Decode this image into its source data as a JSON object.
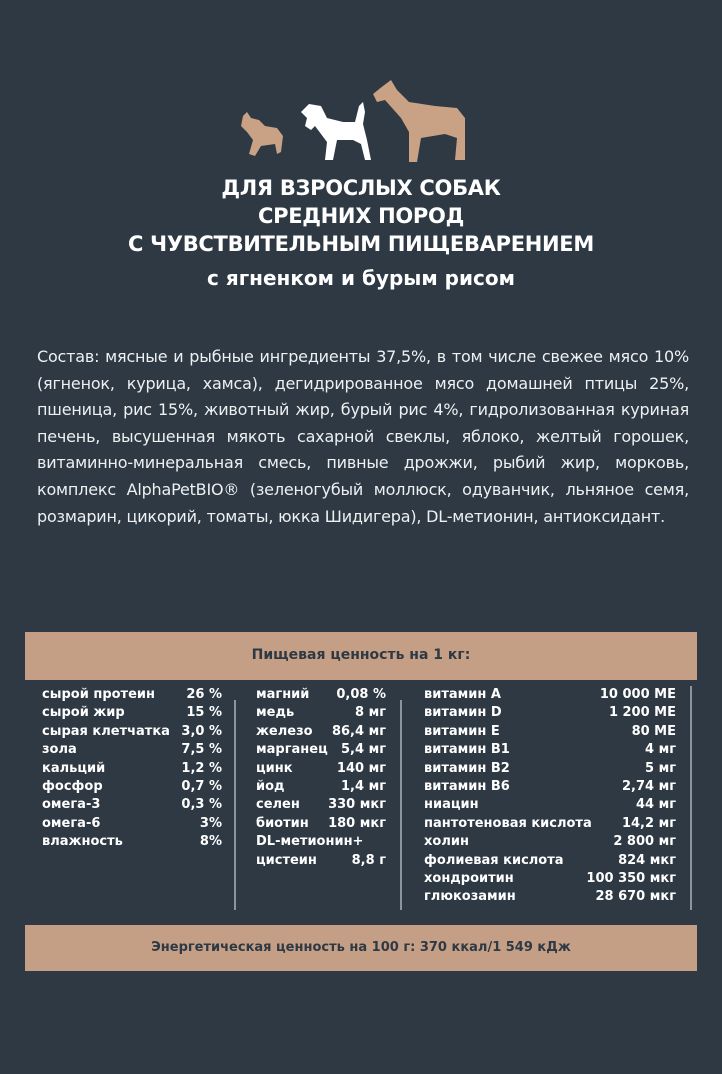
{
  "colors": {
    "background": "#2e3944",
    "accent": "#c49f86",
    "text": "#ffffff"
  },
  "icons": [
    "small-dog-icon",
    "medium-dog-icon",
    "large-dog-icon"
  ],
  "title": {
    "lines": [
      "ДЛЯ ВЗРОСЛЫХ СОБАК",
      "СРЕДНИХ ПОРОД",
      "С ЧУВСТВИТЕЛЬНЫМ ПИЩЕВАРЕНИЕМ"
    ],
    "subtitle": "с ягненком и бурым рисом"
  },
  "composition": "Состав: мясные и рыбные ингредиенты 37,5%, в том числе свежее мясо 10% (ягненок, курица, хамса), дегидрированное мясо домашней птицы 25%, пшеница, рис 15%, животный жир, бурый рис 4%, гидролизованная куриная печень, высушенная мякоть сахарной свеклы, яблоко, желтый горошек, витаминно-минеральная смесь, пивные дрожжи, рыбий жир, морковь, комплекс AlphaPetBIO® (зеленогубый моллюск, одуванчик, льняное семя, розмарин, цикорий, томаты, юкка Шидигера), DL-метионин, антиоксидант.",
  "nutrition": {
    "header": "Пищевая ценность на 1 кг:",
    "col1": [
      [
        "сырой протеин",
        "26 %"
      ],
      [
        "сырой жир",
        "15 %"
      ],
      [
        "сырая клетчатка",
        "3,0 %"
      ],
      [
        "зола",
        "7,5 %"
      ],
      [
        "кальций",
        "1,2 %"
      ],
      [
        "фосфор",
        "0,7 %"
      ],
      [
        "омега-3",
        "0,3 %"
      ],
      [
        "омега-6",
        "3%"
      ],
      [
        "влажность",
        "8%"
      ]
    ],
    "col2": [
      [
        "магний",
        "0,08 %"
      ],
      [
        "медь",
        "8 мг"
      ],
      [
        "железо",
        "86,4 мг"
      ],
      [
        "марганец",
        "5,4 мг"
      ],
      [
        "цинк",
        "140 мг"
      ],
      [
        "йод",
        "1,4 мг"
      ],
      [
        "селен",
        "330 мкг"
      ],
      [
        "биотин",
        "180 мкг"
      ],
      [
        "DL-метионин+",
        ""
      ],
      [
        "цистеин",
        "8,8 г"
      ]
    ],
    "col3": [
      [
        "витамин А",
        "10 000 МЕ"
      ],
      [
        "витамин D",
        "1 200 МЕ"
      ],
      [
        "витамин Е",
        "80 МЕ"
      ],
      [
        "витамин В1",
        "4 мг"
      ],
      [
        "витамин В2",
        "5 мг"
      ],
      [
        "витамин В6",
        "2,74 мг"
      ],
      [
        "ниацин",
        "44 мг"
      ],
      [
        "пантотеновая кислота",
        "14,2 мг"
      ],
      [
        "холин",
        "2 800 мг"
      ],
      [
        "фолиевая кислота",
        "824 мкг"
      ],
      [
        "хондроитин",
        "100 350 мкг"
      ],
      [
        "глюкозамин",
        "28 670 мкг"
      ]
    ],
    "energy": "Энергетическая ценность на 100 г: 370 ккал/1 549 кДж"
  }
}
